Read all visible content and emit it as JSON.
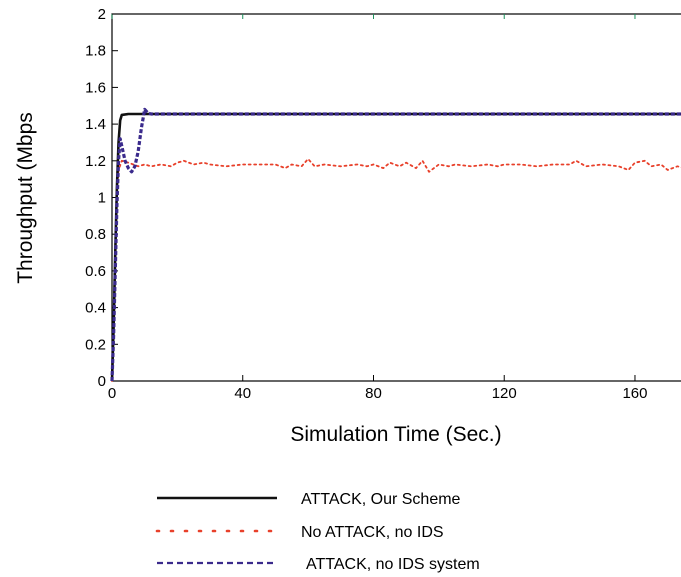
{
  "chart_data": {
    "type": "line",
    "xlabel": "Simulation Time (Sec.)",
    "ylabel": "Throughput (Mbps",
    "xlim": [
      0,
      175
    ],
    "ylim": [
      0,
      2
    ],
    "x_ticks": [
      0,
      40,
      80,
      120,
      160
    ],
    "y_ticks": [
      0,
      0.2,
      0.4,
      0.6,
      0.8,
      1,
      1.2,
      1.4,
      1.6,
      1.8,
      2
    ],
    "y_tick_labels": [
      "0",
      "0.2",
      "0.4",
      "0.6",
      "0.8",
      "1",
      "1.2",
      "1.4",
      "1.6",
      "1.8",
      "2"
    ],
    "grid": false,
    "legend_position": "bottom",
    "series": [
      {
        "name": "ATTACK, Our Scheme",
        "style": "solid",
        "color": "#111111",
        "x": [
          0,
          0.5,
          1,
          1.5,
          2,
          2.5,
          3,
          5,
          10,
          20,
          40,
          60,
          80,
          100,
          120,
          140,
          160,
          175
        ],
        "y": [
          0,
          0.3,
          0.7,
          1.05,
          1.3,
          1.42,
          1.45,
          1.455,
          1.455,
          1.455,
          1.455,
          1.455,
          1.455,
          1.455,
          1.455,
          1.455,
          1.455,
          1.455
        ]
      },
      {
        "name": "No ATTACK, no IDS",
        "style": "dotted",
        "color": "#e8402a",
        "x": [
          0,
          0.5,
          1,
          1.5,
          2,
          3,
          5,
          8,
          10,
          12,
          15,
          18,
          20,
          22,
          25,
          28,
          30,
          35,
          40,
          45,
          50,
          53,
          55,
          58,
          60,
          62,
          65,
          70,
          75,
          78,
          80,
          83,
          85,
          88,
          90,
          93,
          95,
          97,
          100,
          103,
          105,
          110,
          115,
          118,
          120,
          125,
          130,
          135,
          140,
          142,
          145,
          150,
          155,
          158,
          160,
          163,
          165,
          168,
          170,
          173,
          175
        ],
        "y": [
          0,
          0.3,
          0.7,
          1.0,
          1.15,
          1.2,
          1.19,
          1.17,
          1.18,
          1.17,
          1.18,
          1.17,
          1.19,
          1.2,
          1.18,
          1.19,
          1.18,
          1.17,
          1.18,
          1.18,
          1.18,
          1.16,
          1.18,
          1.17,
          1.21,
          1.17,
          1.18,
          1.17,
          1.18,
          1.17,
          1.18,
          1.16,
          1.19,
          1.17,
          1.19,
          1.16,
          1.2,
          1.14,
          1.18,
          1.17,
          1.18,
          1.17,
          1.18,
          1.17,
          1.18,
          1.18,
          1.17,
          1.18,
          1.18,
          1.2,
          1.17,
          1.18,
          1.17,
          1.15,
          1.19,
          1.2,
          1.17,
          1.18,
          1.15,
          1.17,
          1.16
        ]
      },
      {
        "name": "ATTACK, no IDS system",
        "style": "dashed",
        "color": "#3a2a8c",
        "x": [
          0,
          0.5,
          1,
          1.5,
          2,
          2.5,
          3,
          4,
          5,
          6,
          7,
          8,
          9,
          10,
          11,
          12,
          15,
          20,
          40,
          60,
          80,
          100,
          120,
          140,
          160,
          175
        ],
        "y": [
          0,
          0.25,
          0.6,
          0.95,
          1.2,
          1.32,
          1.28,
          1.2,
          1.16,
          1.14,
          1.17,
          1.25,
          1.38,
          1.48,
          1.46,
          1.455,
          1.455,
          1.455,
          1.455,
          1.455,
          1.455,
          1.455,
          1.455,
          1.455,
          1.455,
          1.455
        ]
      }
    ]
  }
}
